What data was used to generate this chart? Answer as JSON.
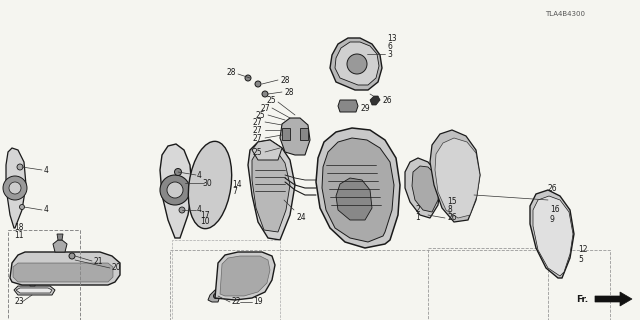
{
  "background_color": "#f5f5f0",
  "line_color": "#1a1a1a",
  "diagram_code": "TLA4B4300",
  "fig_width": 6.4,
  "fig_height": 3.2,
  "dpi": 100
}
